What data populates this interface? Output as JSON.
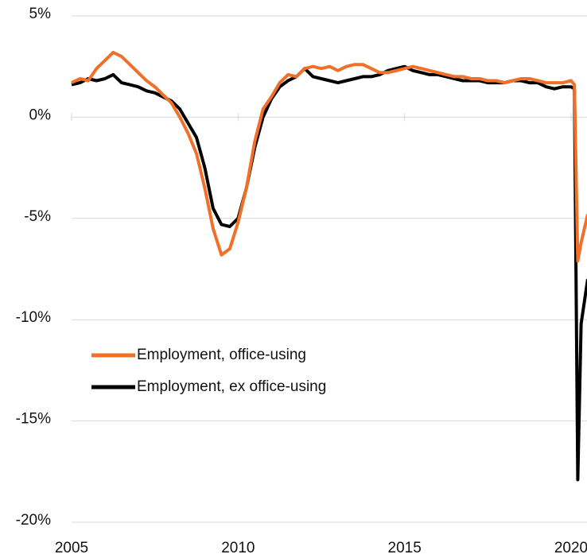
{
  "chart_data": {
    "type": "line",
    "x": [
      2005,
      2005.25,
      2005.5,
      2005.75,
      2006,
      2006.25,
      2006.5,
      2006.75,
      2007,
      2007.25,
      2007.5,
      2007.75,
      2008,
      2008.25,
      2008.5,
      2008.75,
      2009,
      2009.25,
      2009.5,
      2009.75,
      2010,
      2010.25,
      2010.5,
      2010.75,
      2011,
      2011.25,
      2011.5,
      2011.75,
      2012,
      2012.25,
      2012.5,
      2012.75,
      2013,
      2013.25,
      2013.5,
      2013.75,
      2014,
      2014.25,
      2014.5,
      2014.75,
      2015,
      2015.25,
      2015.5,
      2015.75,
      2016,
      2016.25,
      2016.5,
      2016.75,
      2017,
      2017.25,
      2017.5,
      2017.75,
      2018,
      2018.25,
      2018.5,
      2018.75,
      2019,
      2019.25,
      2019.5,
      2019.75,
      2020,
      2020.1,
      2020.2,
      2020.3,
      2020.5
    ],
    "series": [
      {
        "name": "Employment, office-using",
        "color": "#f07029",
        "values": [
          1.7,
          1.9,
          1.8,
          2.4,
          2.8,
          3.2,
          3.0,
          2.6,
          2.2,
          1.8,
          1.5,
          1.1,
          0.7,
          0.0,
          -0.8,
          -1.8,
          -3.5,
          -5.5,
          -6.8,
          -6.5,
          -5.2,
          -3.5,
          -1.2,
          0.4,
          1.0,
          1.7,
          2.1,
          2.0,
          2.4,
          2.5,
          2.4,
          2.5,
          2.3,
          2.5,
          2.6,
          2.6,
          2.4,
          2.2,
          2.2,
          2.3,
          2.4,
          2.5,
          2.4,
          2.3,
          2.2,
          2.1,
          2.0,
          2.0,
          1.9,
          1.9,
          1.8,
          1.8,
          1.7,
          1.8,
          1.9,
          1.9,
          1.8,
          1.7,
          1.7,
          1.7,
          1.8,
          1.6,
          -7.1,
          -6.2,
          -4.8
        ]
      },
      {
        "name": "Employment, ex office-using",
        "color": "#000000",
        "values": [
          1.6,
          1.7,
          1.9,
          1.8,
          1.9,
          2.1,
          1.7,
          1.6,
          1.5,
          1.3,
          1.2,
          1.0,
          0.8,
          0.4,
          -0.3,
          -1.0,
          -2.5,
          -4.5,
          -5.3,
          -5.4,
          -5.0,
          -3.5,
          -1.5,
          0.0,
          0.9,
          1.5,
          1.8,
          2.0,
          2.4,
          2.0,
          1.9,
          1.8,
          1.7,
          1.8,
          1.9,
          2.0,
          2.0,
          2.1,
          2.3,
          2.4,
          2.5,
          2.3,
          2.2,
          2.1,
          2.1,
          2.0,
          1.9,
          1.8,
          1.8,
          1.8,
          1.7,
          1.7,
          1.7,
          1.8,
          1.8,
          1.7,
          1.7,
          1.5,
          1.4,
          1.5,
          1.5,
          1.4,
          -17.9,
          -10.2,
          -8.0
        ]
      }
    ],
    "xlim": [
      2005,
      2020.5
    ],
    "xticks": [
      2005,
      2010,
      2015,
      2020
    ],
    "ylim": [
      -20,
      5
    ],
    "yticks": [
      {
        "value": -20,
        "label": "-20%"
      },
      {
        "value": -15,
        "label": "-15%"
      },
      {
        "value": -10,
        "label": "-10%"
      },
      {
        "value": -5,
        "label": "-5%"
      },
      {
        "value": 0,
        "label": "0%"
      },
      {
        "value": 5,
        "label": "5%"
      }
    ],
    "grid": true
  }
}
